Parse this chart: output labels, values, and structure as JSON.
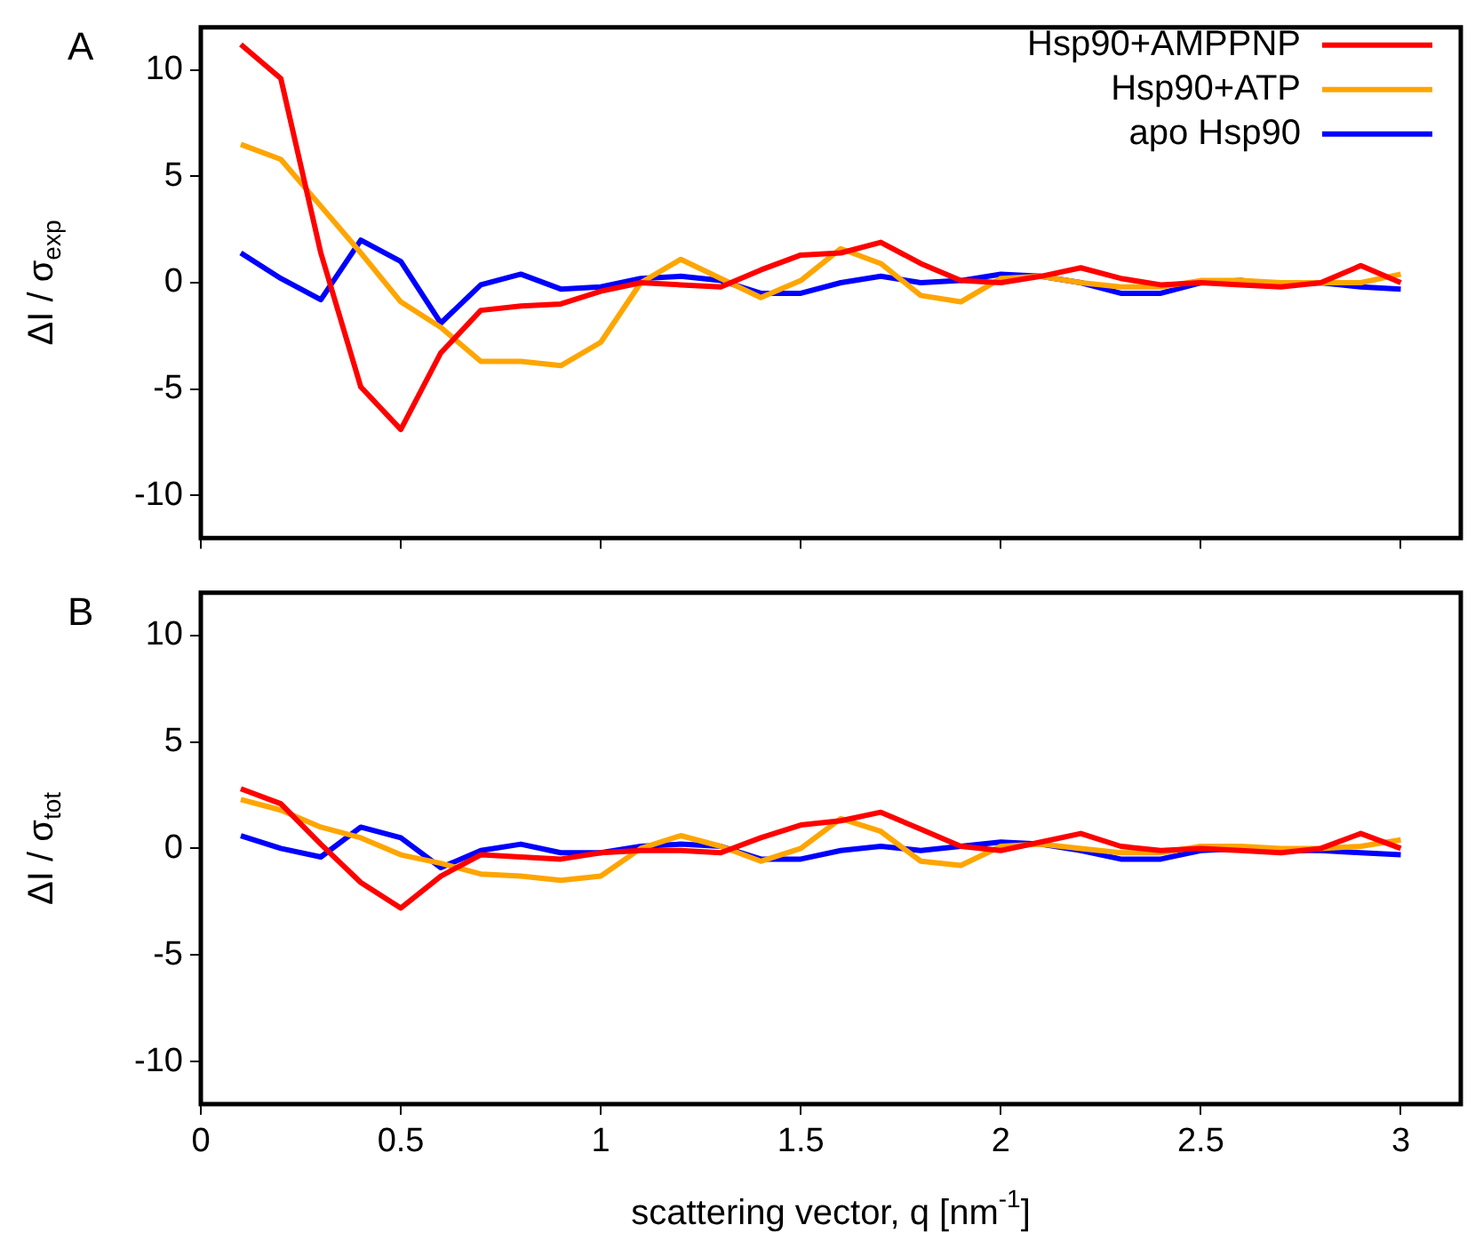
{
  "chart_data": [
    {
      "type": "line",
      "annotations": [
        "A"
      ],
      "ylabel": "ΔI / σ$_{exp}$",
      "x": [
        0.1,
        0.2,
        0.3,
        0.4,
        0.5,
        0.6,
        0.7,
        0.8,
        0.9,
        1.0,
        1.1,
        1.2,
        1.3,
        1.4,
        1.5,
        1.6,
        1.7,
        1.8,
        1.9,
        2.0,
        2.1,
        2.2,
        2.3,
        2.4,
        2.5,
        2.6,
        2.7,
        2.8,
        2.9,
        3.0
      ],
      "series": [
        {
          "name": "Hsp90+AMPPNP",
          "color": "#ff0000",
          "values": [
            11.2,
            9.6,
            1.4,
            -4.9,
            -6.9,
            -3.3,
            -1.3,
            -1.1,
            -1.0,
            -0.4,
            0,
            -0.1,
            -0.2,
            0.6,
            1.3,
            1.4,
            1.9,
            0.9,
            0.1,
            0,
            0.3,
            0.7,
            0.2,
            -0.1,
            0,
            -0.1,
            -0.2,
            0,
            0.8,
            0
          ]
        },
        {
          "name": "Hsp90+ATP",
          "color": "#ffa500",
          "values": [
            6.5,
            5.8,
            3.6,
            1.4,
            -0.9,
            -2.1,
            -3.7,
            -3.7,
            -3.9,
            -2.8,
            0,
            1.1,
            0.2,
            -0.7,
            0.1,
            1.6,
            0.9,
            -0.6,
            -0.9,
            0.2,
            0.3,
            0,
            -0.2,
            -0.2,
            0.1,
            0.1,
            0,
            0,
            0,
            0.4
          ]
        },
        {
          "name": "apo Hsp90",
          "color": "#0000ff",
          "values": [
            1.4,
            0.2,
            -0.8,
            2.0,
            1.0,
            -1.9,
            -0.1,
            0.4,
            -0.3,
            -0.2,
            0.2,
            0.3,
            0.1,
            -0.5,
            -0.5,
            0,
            0.3,
            0,
            0.1,
            0.4,
            0.3,
            0,
            -0.5,
            -0.5,
            0,
            0.1,
            -0.1,
            0,
            -0.2,
            -0.3
          ]
        }
      ],
      "xlim": [
        0,
        3.15
      ],
      "xticks": [
        0,
        0.5,
        1,
        1.5,
        2,
        2.5,
        3
      ],
      "ylim": [
        -12,
        12
      ],
      "yticks": [
        -10,
        -5,
        0,
        5,
        10
      ],
      "tick_labels": "y",
      "legend": "top right",
      "grid": false
    },
    {
      "type": "line",
      "annotations": [
        "B"
      ],
      "ylabel": "ΔI / σ$_{tot}$",
      "xlabel": "scattering vector, q [nm$^{-1}$]",
      "x": [
        0.1,
        0.2,
        0.3,
        0.4,
        0.5,
        0.6,
        0.7,
        0.8,
        0.9,
        1.0,
        1.1,
        1.2,
        1.3,
        1.4,
        1.5,
        1.6,
        1.7,
        1.8,
        1.9,
        2.0,
        2.1,
        2.2,
        2.3,
        2.4,
        2.5,
        2.6,
        2.7,
        2.8,
        2.9,
        3.0
      ],
      "series": [
        {
          "color": "#ff0000",
          "values": [
            2.8,
            2.1,
            0.2,
            -1.6,
            -2.8,
            -1.3,
            -0.3,
            -0.4,
            -0.5,
            -0.2,
            -0.1,
            -0.1,
            -0.2,
            0.5,
            1.1,
            1.3,
            1.7,
            0.9,
            0.1,
            -0.1,
            0.3,
            0.7,
            0.1,
            -0.1,
            0,
            -0.1,
            -0.2,
            0,
            0.7,
            0
          ]
        },
        {
          "color": "#ffa500",
          "values": [
            2.3,
            1.8,
            1.0,
            0.5,
            -0.3,
            -0.7,
            -1.2,
            -1.3,
            -1.5,
            -1.3,
            0,
            0.6,
            0.1,
            -0.6,
            0,
            1.4,
            0.8,
            -0.6,
            -0.8,
            0.1,
            0.2,
            0,
            -0.2,
            -0.2,
            0.1,
            0.1,
            0,
            0,
            0.1,
            0.4
          ]
        },
        {
          "color": "#0000ff",
          "values": [
            0.6,
            0,
            -0.4,
            1.0,
            0.5,
            -0.9,
            -0.1,
            0.2,
            -0.2,
            -0.2,
            0.1,
            0.2,
            0.1,
            -0.5,
            -0.5,
            -0.1,
            0.1,
            -0.1,
            0.1,
            0.3,
            0.2,
            -0.1,
            -0.5,
            -0.5,
            -0.1,
            0,
            -0.1,
            -0.1,
            -0.2,
            -0.3
          ]
        }
      ],
      "xlim": [
        0,
        3.15
      ],
      "xticks": [
        0,
        0.5,
        1,
        1.5,
        2,
        2.5,
        3
      ],
      "ylim": [
        -12,
        12
      ],
      "yticks": [
        -10,
        -5,
        0,
        5,
        10
      ],
      "grid": false
    }
  ]
}
